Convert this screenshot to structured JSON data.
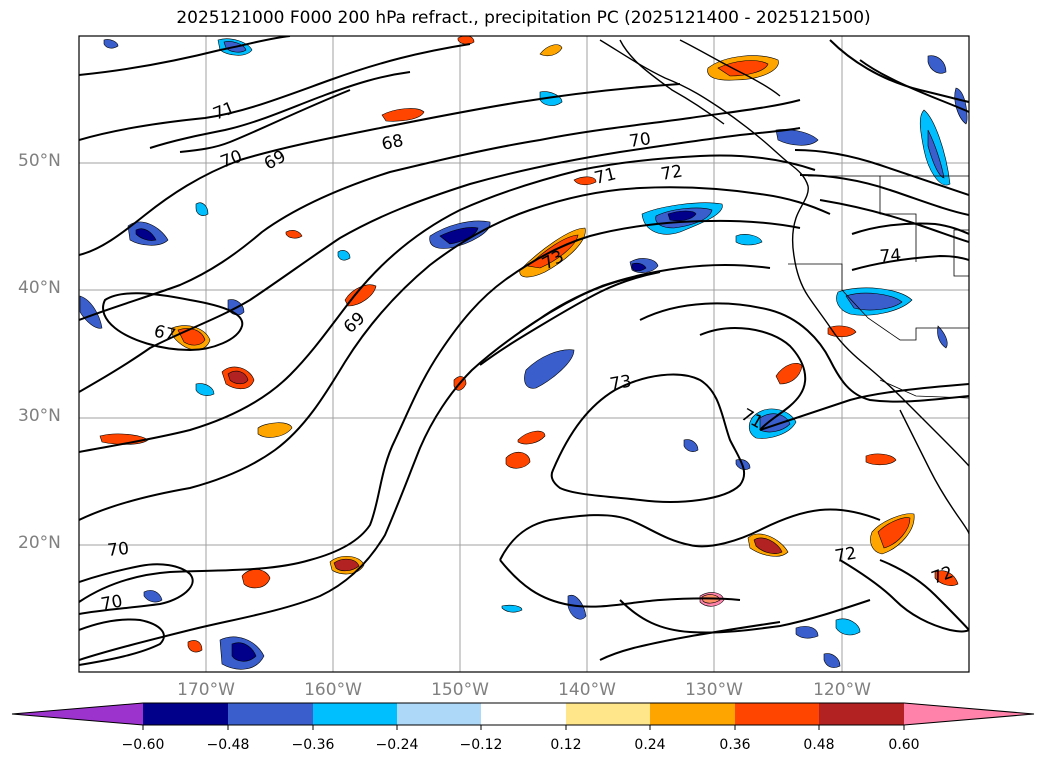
{
  "title": "2025121000 F000 200 hPa refract., precipitation PC (2025121400 - 2025121500)",
  "lat_labels": [
    "50°N",
    "40°N",
    "30°N",
    "20°N"
  ],
  "lon_labels": [
    "170°W",
    "160°W",
    "150°W",
    "140°W",
    "130°W",
    "120°W"
  ],
  "colorbar": {
    "colors": [
      "#9b33cc",
      "#00008b",
      "#3a5fcd",
      "#00bfff",
      "#add8f7",
      "#ffffff",
      "#ffe68a",
      "#ffa500",
      "#ff4500",
      "#b22222",
      "#ff82ab",
      "#ff82ab"
    ],
    "tick_labels": [
      "−0.60",
      "−0.48",
      "−0.36",
      "−0.24",
      "−0.12",
      "0.12",
      "0.24",
      "0.36",
      "0.48",
      "0.60"
    ],
    "extend": "both"
  },
  "contour_labels": [
    "71",
    "70",
    "69",
    "68",
    "67",
    "69",
    "73",
    "71",
    "70",
    "72",
    "74",
    "73",
    "71",
    "72",
    "70",
    "70",
    "72"
  ],
  "map": {
    "projection": "PlateCarree",
    "lon_range": [
      -180,
      -110
    ],
    "lat_range": [
      10,
      60
    ],
    "gridlines": true
  }
}
